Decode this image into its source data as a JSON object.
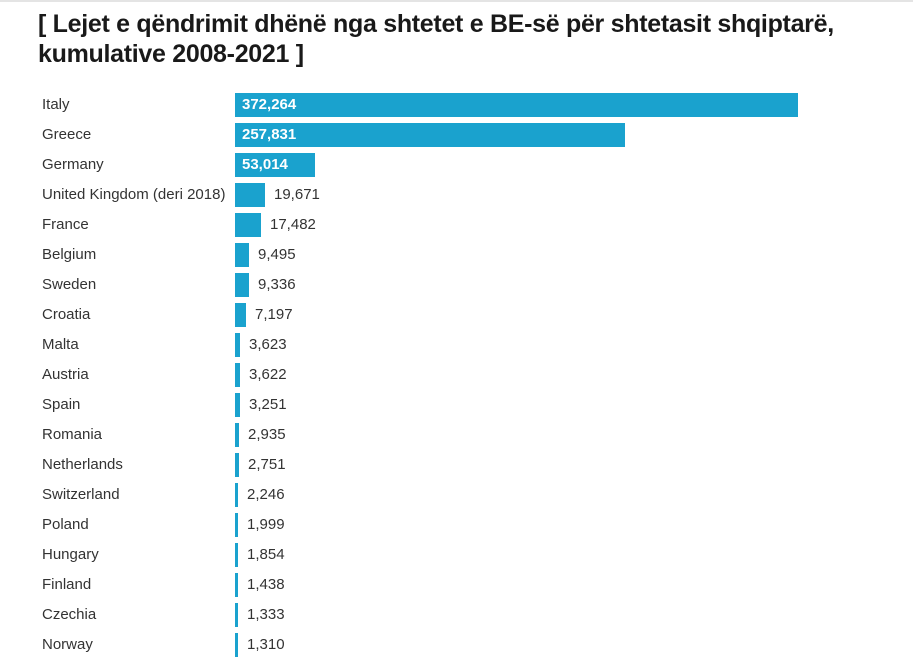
{
  "page": {
    "background_color": "#ffffff",
    "top_divider_color": "#e4e4e4"
  },
  "header": {
    "title": "[ Lejet e qëndrimit dhënë nga shtetet e BE-së për shtetasit shqiptarë, kumulative 2008-2021 ]"
  },
  "chart_data": {
    "type": "bar",
    "orientation": "horizontal",
    "title": "Lejet e qëndrimit dhënë nga shtetet e BE-së për shtetasit shqiptarë, kumulative 2008-2021",
    "categories": [
      "Italy",
      "Greece",
      "Germany",
      "United Kingdom (deri 2018)",
      "France",
      "Belgium",
      "Sweden",
      "Croatia",
      "Malta",
      "Austria",
      "Spain",
      "Romania",
      "Netherlands",
      "Switzerland",
      "Poland",
      "Hungary",
      "Finland",
      "Czechia",
      "Norway"
    ],
    "values": [
      372264,
      257831,
      53014,
      19671,
      17482,
      9495,
      9336,
      7197,
      3623,
      3622,
      3251,
      2935,
      2751,
      2246,
      1999,
      1854,
      1438,
      1333,
      1310
    ],
    "value_labels": [
      "372,264",
      "257,831",
      "53,014",
      "19,671",
      "17,482",
      "9,495",
      "9,336",
      "7,197",
      "3,623",
      "3,622",
      "3,251",
      "2,935",
      "2,751",
      "2,246",
      "1,999",
      "1,854",
      "1,438",
      "1,333",
      "1,310"
    ],
    "xlim": [
      0,
      372264
    ],
    "grid": false,
    "legend": false,
    "bar_color": "#1aa2ce",
    "inside_value_color": "#ffffff",
    "outside_value_color": "#333333",
    "label_color": "#333333"
  }
}
